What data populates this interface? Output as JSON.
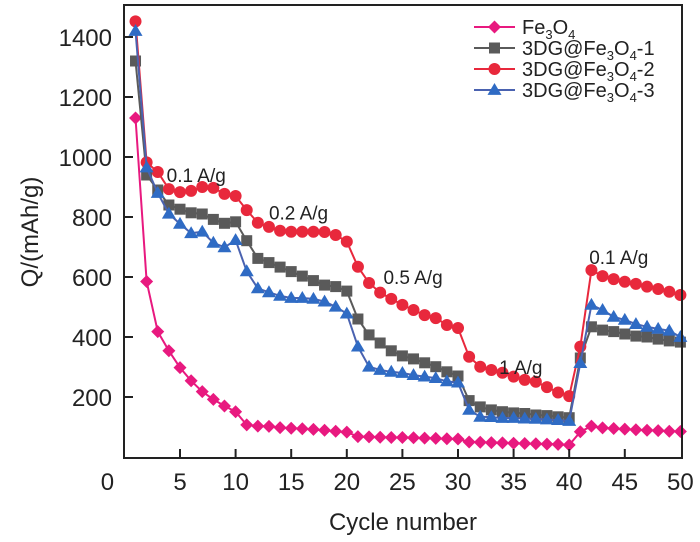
{
  "chart_data": {
    "type": "line",
    "title": "",
    "xlabel": "Cycle number",
    "ylabel": "Q/(mAh/g)",
    "xlim": [
      0,
      50
    ],
    "ylim": [
      0,
      1507
    ],
    "xticks": [
      0,
      5,
      10,
      15,
      20,
      25,
      30,
      35,
      40,
      45,
      50
    ],
    "xtick_labels": [
      "0",
      "5",
      "10",
      "15",
      "20",
      "25",
      "30",
      "35",
      "40",
      "45",
      "50"
    ],
    "yticks": [
      200,
      400,
      600,
      800,
      1000,
      1200,
      1400
    ],
    "ytick_labels": [
      "200",
      "400",
      "600",
      "800",
      "1000",
      "1200",
      "1400"
    ],
    "grid": false,
    "legend_position": "top-right",
    "x": [
      1,
      2,
      3,
      4,
      5,
      6,
      7,
      8,
      9,
      10,
      11,
      12,
      13,
      14,
      15,
      16,
      17,
      18,
      19,
      20,
      21,
      22,
      23,
      24,
      25,
      26,
      27,
      28,
      29,
      30,
      31,
      32,
      33,
      34,
      35,
      36,
      37,
      38,
      39,
      40,
      41,
      42,
      43,
      44,
      45,
      46,
      47,
      48,
      49,
      50
    ],
    "series": [
      {
        "name": "Fe3O4",
        "label_parts": [
          "Fe",
          "3",
          "O",
          "4",
          ""
        ],
        "color": "#e8197f",
        "marker": "diamond",
        "values": [
          1130,
          585,
          418,
          354,
          298,
          254,
          218,
          192,
          170,
          151,
          107,
          103,
          102,
          98,
          96,
          94,
          92,
          89,
          86,
          83,
          68,
          67,
          66,
          65,
          65,
          64,
          63,
          62,
          61,
          60,
          50,
          49,
          48,
          47,
          46,
          45,
          44,
          43,
          42,
          40,
          84,
          103,
          97,
          95,
          93,
          91,
          89,
          88,
          86,
          85
        ]
      },
      {
        "name": "3DG@Fe3O4-1",
        "label_parts": [
          "3DG@Fe",
          "3",
          "O",
          "4",
          "-1"
        ],
        "color": "#5a5a5a",
        "marker": "square",
        "values": [
          1320,
          940,
          890,
          840,
          826,
          814,
          810,
          792,
          779,
          784,
          721,
          662,
          648,
          633,
          618,
          603,
          588,
          573,
          568,
          553,
          460,
          407,
          380,
          354,
          337,
          327,
          314,
          301,
          284,
          270,
          188,
          167,
          157,
          151,
          147,
          145,
          140,
          138,
          134,
          131,
          330,
          434,
          423,
          418,
          410,
          403,
          400,
          393,
          387,
          383
        ]
      },
      {
        "name": "3DG@Fe3O4-2",
        "label_parts": [
          "3DG@Fe",
          "3",
          "O",
          "4",
          "-2"
        ],
        "color": "#e8283c",
        "marker": "circle",
        "values": [
          1452,
          982,
          950,
          893,
          883,
          887,
          900,
          897,
          877,
          870,
          823,
          781,
          767,
          754,
          751,
          751,
          751,
          750,
          740,
          718,
          634,
          580,
          548,
          527,
          507,
          490,
          473,
          463,
          440,
          430,
          334,
          301,
          290,
          281,
          268,
          257,
          251,
          233,
          215,
          203,
          368,
          623,
          603,
          593,
          584,
          577,
          568,
          560,
          551,
          540
        ]
      },
      {
        "name": "3DG@Fe3O4-3",
        "label_parts": [
          "3DG@Fe",
          "3",
          "O",
          "4",
          "-3"
        ],
        "color": "#2f6bc4",
        "marker": "triangle",
        "values": [
          1420,
          965,
          880,
          811,
          777,
          746,
          751,
          714,
          699,
          723,
          619,
          562,
          549,
          537,
          530,
          530,
          527,
          518,
          501,
          478,
          368,
          301,
          290,
          284,
          280,
          273,
          268,
          263,
          252,
          248,
          157,
          134,
          133,
          130,
          130,
          128,
          127,
          125,
          123,
          120,
          313,
          507,
          490,
          467,
          457,
          443,
          434,
          427,
          421,
          400
        ]
      }
    ],
    "annotations": [
      {
        "text": "0.1 A/g",
        "x": 3.8,
        "y": 940
      },
      {
        "text": "0.2 A/g",
        "x": 13,
        "y": 815
      },
      {
        "text": "0.5 A/g",
        "x": 23.3,
        "y": 600
      },
      {
        "text": "1 A/g",
        "x": 33.7,
        "y": 300
      },
      {
        "text": "0.1 A/g",
        "x": 41.8,
        "y": 667
      }
    ]
  }
}
